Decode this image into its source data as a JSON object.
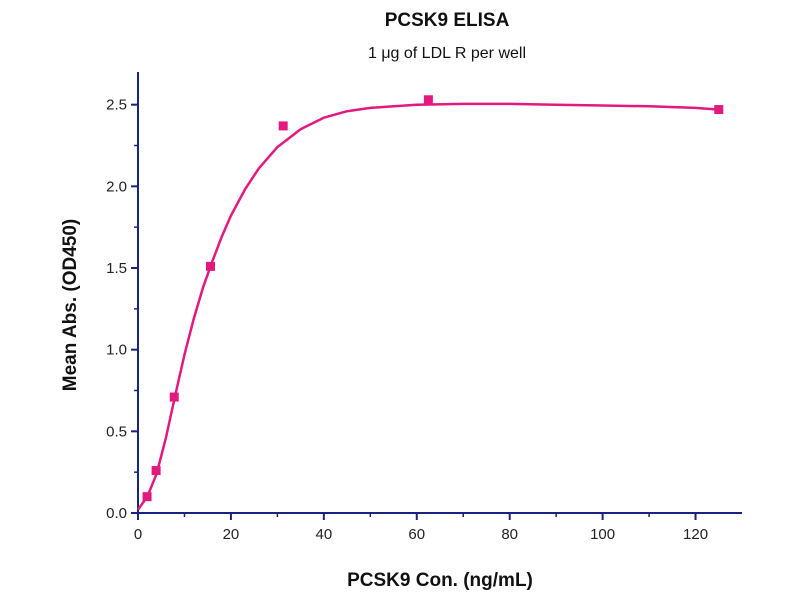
{
  "colors": {
    "axis": "#1a237e",
    "series": "#e3197f",
    "text": "#111111"
  },
  "chart_data": {
    "type": "scatter",
    "title": "PCSK9 ELISA",
    "subtitle": "1 μg of LDL R per well",
    "xlabel": "PCSK9 Con. (ng/mL)",
    "ylabel": "Mean Abs. (OD450)",
    "xlim": [
      0,
      130
    ],
    "ylim": [
      0,
      2.7
    ],
    "xticks": [
      0,
      20,
      40,
      60,
      80,
      100,
      120
    ],
    "xtick_labels": [
      "0",
      "20",
      "40",
      "60",
      "80",
      "100",
      "120"
    ],
    "yticks": [
      0.0,
      0.5,
      1.0,
      1.5,
      2.0,
      2.5
    ],
    "ytick_labels": [
      "0.0",
      "0.5",
      "1.0",
      "1.5",
      "2.0",
      "2.5"
    ],
    "grid": false,
    "series": [
      {
        "points": [
          {
            "x": 1.95,
            "y": 0.1
          },
          {
            "x": 3.9,
            "y": 0.26
          },
          {
            "x": 7.8,
            "y": 0.71
          },
          {
            "x": 15.6,
            "y": 1.51
          },
          {
            "x": 31.25,
            "y": 2.37
          },
          {
            "x": 62.5,
            "y": 2.53
          },
          {
            "x": 125,
            "y": 2.47
          }
        ],
        "fit": [
          {
            "x": 0,
            "y": 0.02
          },
          {
            "x": 2,
            "y": 0.1
          },
          {
            "x": 4,
            "y": 0.24
          },
          {
            "x": 6,
            "y": 0.46
          },
          {
            "x": 8,
            "y": 0.72
          },
          {
            "x": 10,
            "y": 0.97
          },
          {
            "x": 12,
            "y": 1.19
          },
          {
            "x": 14,
            "y": 1.38
          },
          {
            "x": 16,
            "y": 1.54
          },
          {
            "x": 18,
            "y": 1.69
          },
          {
            "x": 20,
            "y": 1.82
          },
          {
            "x": 23,
            "y": 1.98
          },
          {
            "x": 26,
            "y": 2.11
          },
          {
            "x": 30,
            "y": 2.24
          },
          {
            "x": 35,
            "y": 2.35
          },
          {
            "x": 40,
            "y": 2.42
          },
          {
            "x": 45,
            "y": 2.46
          },
          {
            "x": 50,
            "y": 2.48
          },
          {
            "x": 60,
            "y": 2.5
          },
          {
            "x": 70,
            "y": 2.505
          },
          {
            "x": 80,
            "y": 2.505
          },
          {
            "x": 90,
            "y": 2.5
          },
          {
            "x": 100,
            "y": 2.495
          },
          {
            "x": 110,
            "y": 2.49
          },
          {
            "x": 120,
            "y": 2.48
          },
          {
            "x": 125,
            "y": 2.47
          }
        ]
      }
    ]
  }
}
